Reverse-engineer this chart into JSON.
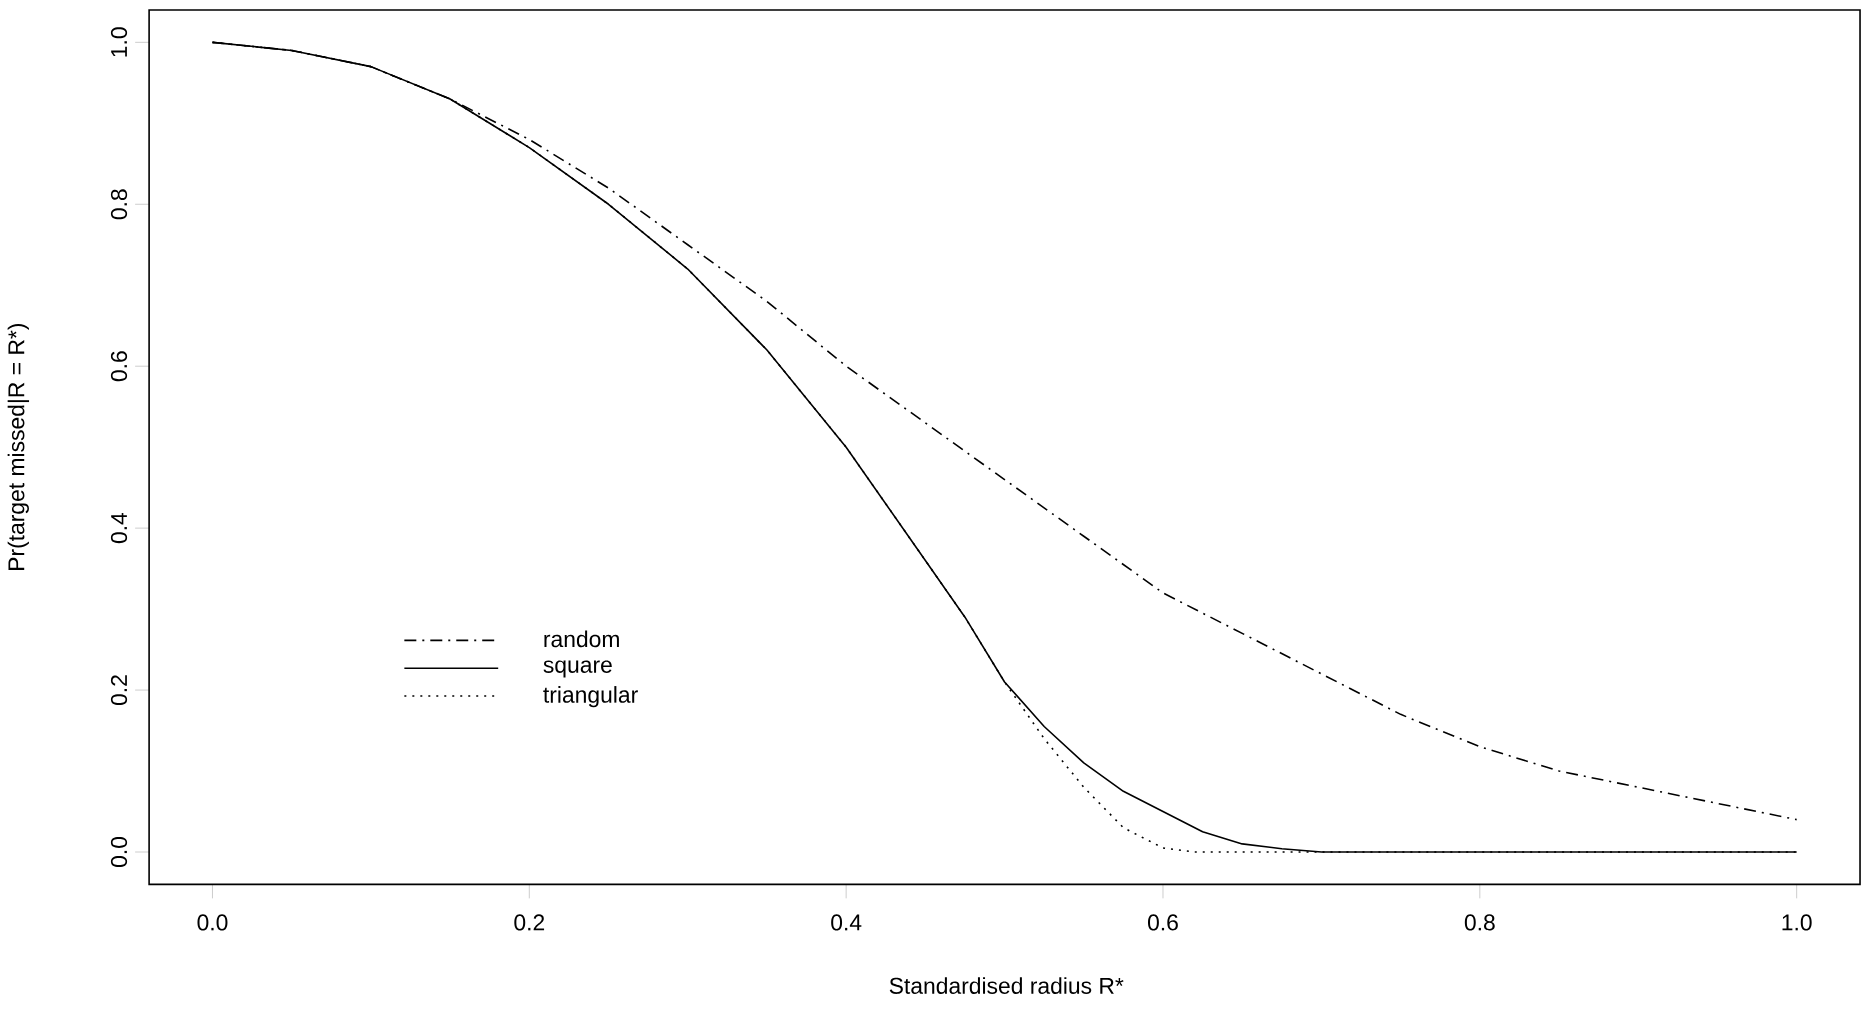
{
  "chart_data": {
    "type": "line",
    "xlabel": "Standardised radius R*",
    "ylabel": "Pr(target missed|R = R*)",
    "xlim": [
      -0.04,
      1.04
    ],
    "ylim": [
      -0.04,
      1.04
    ],
    "xticks": [
      {
        "value": 0,
        "label": "0.0"
      },
      {
        "value": 0.2,
        "label": "0.2"
      },
      {
        "value": 0.4,
        "label": "0.4"
      },
      {
        "value": 0.6,
        "label": "0.6"
      },
      {
        "value": 0.8,
        "label": "0.8"
      },
      {
        "value": 1,
        "label": "1.0"
      }
    ],
    "yticks": [
      {
        "value": 0,
        "label": "0.0"
      },
      {
        "value": 0.2,
        "label": "0.2"
      },
      {
        "value": 0.4,
        "label": "0.4"
      },
      {
        "value": 0.6,
        "label": "0.6"
      },
      {
        "value": 0.8,
        "label": "0.8"
      },
      {
        "value": 1,
        "label": "1.0"
      }
    ],
    "legend": "bottom left",
    "series": [
      {
        "name": "random",
        "color": "#000000",
        "line_style": "dashdot",
        "x": [
          0,
          0.05,
          0.1,
          0.15,
          0.2,
          0.25,
          0.3,
          0.35,
          0.4,
          0.45,
          0.5,
          0.55,
          0.6,
          0.65,
          0.7,
          0.75,
          0.8,
          0.85,
          0.9,
          0.95,
          1.0
        ],
        "values": [
          1,
          0.99,
          0.97,
          0.93,
          0.88,
          0.82,
          0.75,
          0.68,
          0.6,
          0.53,
          0.46,
          0.39,
          0.32,
          0.27,
          0.22,
          0.17,
          0.13,
          0.1,
          0.08,
          0.06,
          0.04
        ]
      },
      {
        "name": "square",
        "color": "#000000",
        "line_style": "solid",
        "x": [
          0,
          0.05,
          0.1,
          0.15,
          0.2,
          0.25,
          0.3,
          0.35,
          0.4,
          0.45,
          0.475,
          0.5,
          0.525,
          0.55,
          0.575,
          0.6,
          0.625,
          0.65,
          0.675,
          0.7,
          0.8,
          0.9,
          1.0
        ],
        "values": [
          1,
          0.99,
          0.97,
          0.93,
          0.87,
          0.8,
          0.72,
          0.62,
          0.5,
          0.36,
          0.29,
          0.21,
          0.155,
          0.11,
          0.075,
          0.05,
          0.025,
          0.01,
          0.004,
          0,
          0,
          0,
          0
        ]
      },
      {
        "name": "triangular",
        "color": "#000000",
        "line_style": "dotted",
        "x": [
          0,
          0.05,
          0.1,
          0.15,
          0.2,
          0.25,
          0.3,
          0.35,
          0.4,
          0.45,
          0.475,
          0.5,
          0.525,
          0.55,
          0.575,
          0.6,
          0.62,
          0.7,
          0.8,
          0.9,
          1.0
        ],
        "values": [
          1,
          0.99,
          0.97,
          0.93,
          0.87,
          0.8,
          0.72,
          0.62,
          0.5,
          0.36,
          0.29,
          0.21,
          0.14,
          0.08,
          0.03,
          0.005,
          0,
          0,
          0,
          0,
          0
        ]
      }
    ]
  }
}
